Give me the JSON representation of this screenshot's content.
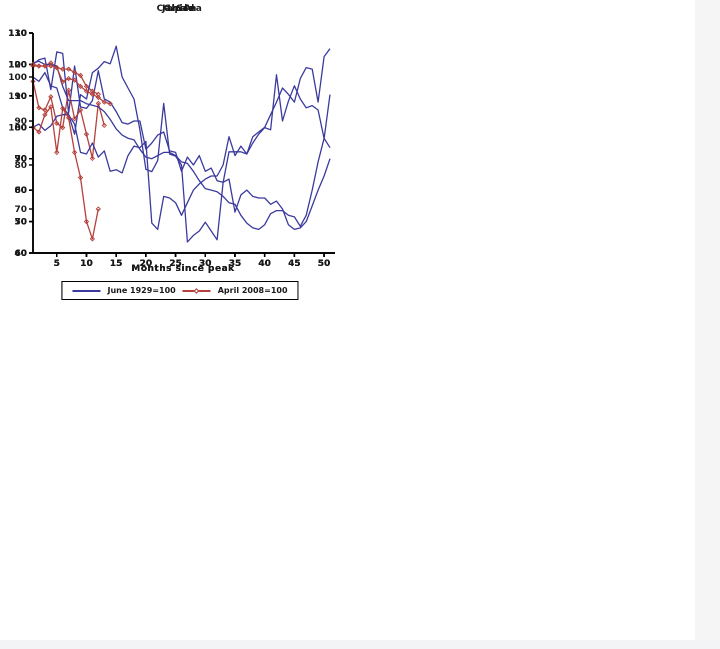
{
  "page": {
    "background": "#ffffff",
    "right_strip_color": "#f5f5f5",
    "bottom_strip_color": "#f3f4f6",
    "axis_color": "#000000",
    "series1_color": "#3a3a9e",
    "series2_color": "#b5413c"
  },
  "chart_data": [
    {
      "type": "line",
      "title": "Canada",
      "xlabel": "Months since peak",
      "ylabel": "",
      "xlim": [
        1,
        51
      ],
      "ylim": [
        40,
        110
      ],
      "xticks": [
        5,
        10,
        15,
        20,
        25,
        30,
        35,
        40,
        45,
        50
      ],
      "yticks": [
        40,
        50,
        60,
        70,
        80,
        90,
        100,
        110
      ],
      "grid": false,
      "legend_position": "bottom",
      "x_start_month": 1,
      "series": [
        {
          "name": "June 1929=100",
          "color": "#3a3a9e",
          "marker": false,
          "values": [
            100,
            101.5,
            102,
            92,
            104,
            103.5,
            84.5,
            99.5,
            86.5,
            86,
            88.5,
            98,
            89,
            88,
            85,
            81.5,
            81,
            82,
            82,
            73,
            75,
            77.5,
            78.5,
            72.5,
            72,
            66,
            70.5,
            68,
            71,
            66,
            67,
            63,
            62.5,
            63.5,
            53,
            58.5,
            60,
            58,
            57.5,
            57.5,
            55.5,
            56.5,
            54,
            49,
            47.5,
            48,
            50,
            55,
            60,
            64.5,
            70
          ]
        },
        {
          "name": "April 2008=100",
          "color": "#b5413c",
          "marker": true,
          "values": [
            99.5,
            99.5,
            99.5,
            100.5,
            99,
            98.5,
            98.5,
            97.5,
            96.5,
            93,
            91.5,
            90.5
          ]
        }
      ]
    },
    {
      "type": "line",
      "title": "Chile",
      "xlabel": "Months since peak",
      "ylabel": "",
      "xlim": [
        1,
        51
      ],
      "ylim": [
        60,
        110
      ],
      "xticks": [
        5,
        10,
        15,
        20,
        25,
        30,
        35,
        40,
        45,
        50
      ],
      "yticks": [
        60,
        70,
        80,
        90,
        100,
        110
      ],
      "grid": false,
      "legend_position": "bottom",
      "x_start_month": 1,
      "series": [
        {
          "name": "June 1929=100",
          "color": "#3a3a9e",
          "marker": false,
          "values": [
            100,
            99,
            101,
            98,
            97.5,
            93,
            91.5,
            87,
            96,
            95,
            101,
            102,
            103.5,
            103,
            107,
            100,
            97.5,
            95,
            88,
            79,
            78.5,
            81,
            94,
            82.5,
            82,
            80,
            62.5,
            64,
            65,
            67,
            65,
            63,
            76,
            83,
            83,
            83,
            82.5,
            85,
            87,
            88.5,
            88,
            100.5,
            90,
            94.5,
            98,
            95,
            93,
            93.5,
            92.5,
            86,
            96
          ]
        },
        {
          "name": "April 2008=100",
          "color": "#b5413c",
          "marker": true,
          "values": [
            99,
            93,
            92.5,
            95.5,
            89.5,
            88.5,
            97,
            90.5,
            92.5,
            87,
            81.5,
            94,
            89
          ]
        }
      ]
    },
    {
      "type": "line",
      "title": "Japan",
      "xlabel": "Months since peak",
      "ylabel": "",
      "xlim": [
        1,
        51
      ],
      "ylim": [
        60,
        130
      ],
      "xticks": [
        5,
        10,
        15,
        20,
        25,
        30,
        35,
        40,
        45,
        50
      ],
      "yticks": [
        60,
        70,
        80,
        90,
        100,
        110,
        120,
        130
      ],
      "grid": false,
      "legend_position": "bottom",
      "x_start_month": 1,
      "series": [
        {
          "name": "June 1929=100",
          "color": "#3a3a9e",
          "marker": false,
          "values": [
            100,
            101,
            99,
            100.5,
            103.5,
            104,
            104,
            101,
            92,
            91.5,
            95,
            90.5,
            92.5,
            86,
            86.5,
            85.5,
            91,
            94,
            93.5,
            95.5,
            69.5,
            67.5,
            78,
            77.5,
            76,
            72,
            76,
            80,
            82,
            83.5,
            84.5,
            84.5,
            88,
            97,
            91,
            94,
            91.5,
            97,
            98.5,
            100,
            104,
            108,
            112.5,
            110.5,
            108,
            115.5,
            119,
            118.5,
            108,
            122.5,
            125
          ]
        },
        {
          "name": "April 2008=100",
          "color": "#b5413c",
          "marker": true,
          "values": [
            100,
            98.5,
            104,
            106.5,
            92,
            106,
            103,
            92,
            84,
            70,
            64.5,
            74
          ]
        }
      ]
    },
    {
      "type": "line",
      "title": "USA",
      "xlabel": "Months since peak",
      "ylabel": "",
      "xlim": [
        1,
        51
      ],
      "ylim": [
        40,
        110
      ],
      "xticks": [
        5,
        10,
        15,
        20,
        25,
        30,
        35,
        40,
        45,
        50
      ],
      "yticks": [
        40,
        50,
        60,
        70,
        80,
        90,
        100,
        110
      ],
      "grid": false,
      "legend_position": "bottom",
      "x_start_month": 1,
      "series": [
        {
          "name": "June 1929=100",
          "color": "#3a3a9e",
          "marker": false,
          "values": [
            100.5,
            101,
            100,
            100,
            99.5,
            93,
            88.5,
            88.5,
            88.5,
            87.5,
            87,
            86.5,
            85,
            82.5,
            79.5,
            77.5,
            76.5,
            76,
            73,
            70.5,
            70,
            71,
            72,
            72,
            71,
            69,
            68.5,
            66,
            63,
            60.5,
            60,
            59.5,
            58,
            56,
            55.5,
            52,
            49.5,
            48,
            47.5,
            49,
            52.5,
            53.5,
            53.5,
            52,
            51.5,
            48.5,
            52,
            60,
            69,
            76.5,
            73.5
          ]
        },
        {
          "name": "April 2008=100",
          "color": "#b5413c",
          "marker": true,
          "values": [
            100,
            99.5,
            99.5,
            99.5,
            99,
            94.5,
            95.5,
            95,
            93,
            91.5,
            90.5,
            89.5,
            88,
            87.5
          ]
        }
      ]
    }
  ]
}
